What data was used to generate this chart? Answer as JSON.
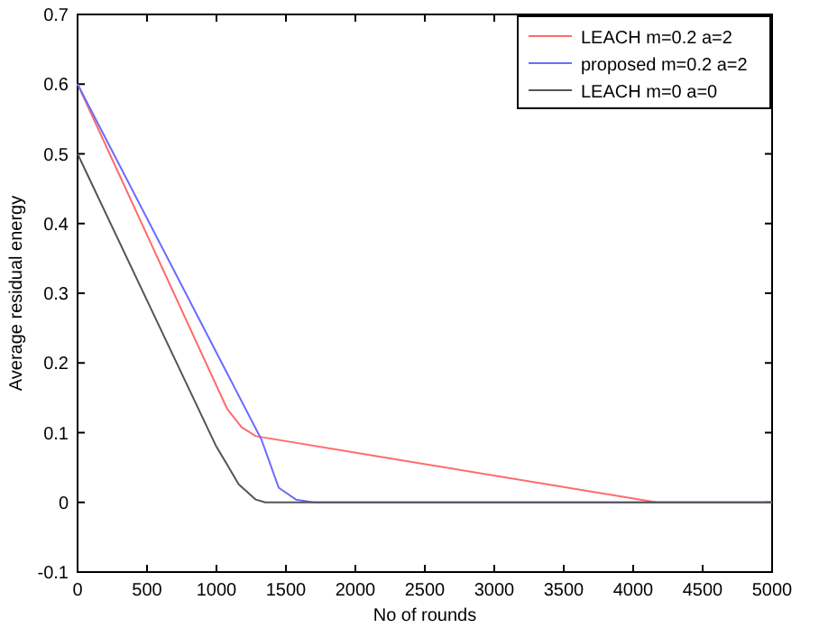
{
  "chart_data": {
    "type": "line",
    "xlabel": "No of rounds",
    "ylabel": "Average residual energy",
    "xlim": [
      0,
      5000
    ],
    "ylim": [
      -0.1,
      0.7
    ],
    "xticks": [
      0,
      500,
      1000,
      1500,
      2000,
      2500,
      3000,
      3500,
      4000,
      4500,
      5000
    ],
    "yticks": [
      -0.1,
      0,
      0.1,
      0.2,
      0.3,
      0.4,
      0.5,
      0.6,
      0.7
    ],
    "grid": false,
    "legend": "top right",
    "marker": "none",
    "line_style": "solid",
    "series": [
      {
        "name": "LEACH m=0.2 a=2",
        "color": "#ff6b6b",
        "x": [
          0,
          1077,
          1180,
          1283,
          2190,
          4170,
          5000
        ],
        "values": [
          0.6,
          0.134,
          0.108,
          0.095,
          0.065,
          0,
          0
        ]
      },
      {
        "name": "proposed m=0.2 a=2",
        "color": "#6b6bff",
        "x": [
          0,
          1324,
          1448,
          1572,
          1700,
          5000
        ],
        "values": [
          0.6,
          0.09,
          0.021,
          0.004,
          0,
          0
        ]
      },
      {
        "name": "LEACH m=0 a=0",
        "color": "#555555",
        "x": [
          0,
          994,
          1160,
          1283,
          1350,
          5000
        ],
        "values": [
          0.5,
          0.082,
          0.026,
          0.004,
          0,
          0
        ]
      }
    ]
  }
}
